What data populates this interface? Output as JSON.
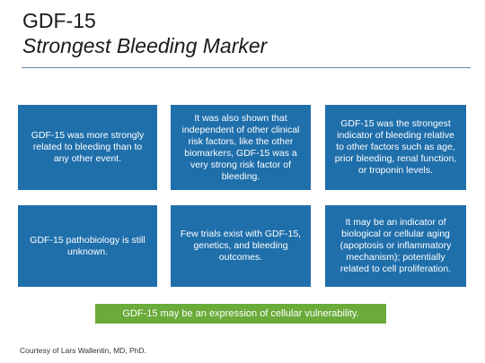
{
  "slide": {
    "title": "GDF-15",
    "subtitle": "Strongest Bleeding Marker",
    "boxes": [
      "GDF-15 was more strongly related to bleeding than to any other event.",
      "It was also shown that independent of other clinical risk factors, like the other biomarkers, GDF-15 was a very strong risk factor of bleeding.",
      "GDF-15 was the strongest indicator of bleeding relative to other factors such as age, prior bleeding, renal function, or troponin levels.",
      "GDF-15 pathobiology is still unknown.",
      "Few trials exist with GDF-15, genetics, and bleeding outcomes.",
      "It may be an indicator of biological or cellular aging (apoptosis or inflammatory mechanism); potentially related to cell proliferation."
    ],
    "callout": "GDF-15 may be an expression of cellular vulnerability.",
    "credit": "Courtesy of Lars Wallentin, MD, PhD."
  },
  "colors": {
    "box_blue": "#1f6fab",
    "callout_green": "#6aab3a",
    "rule_blue": "#5b8fb9",
    "title_text": "#1a1a1a"
  }
}
